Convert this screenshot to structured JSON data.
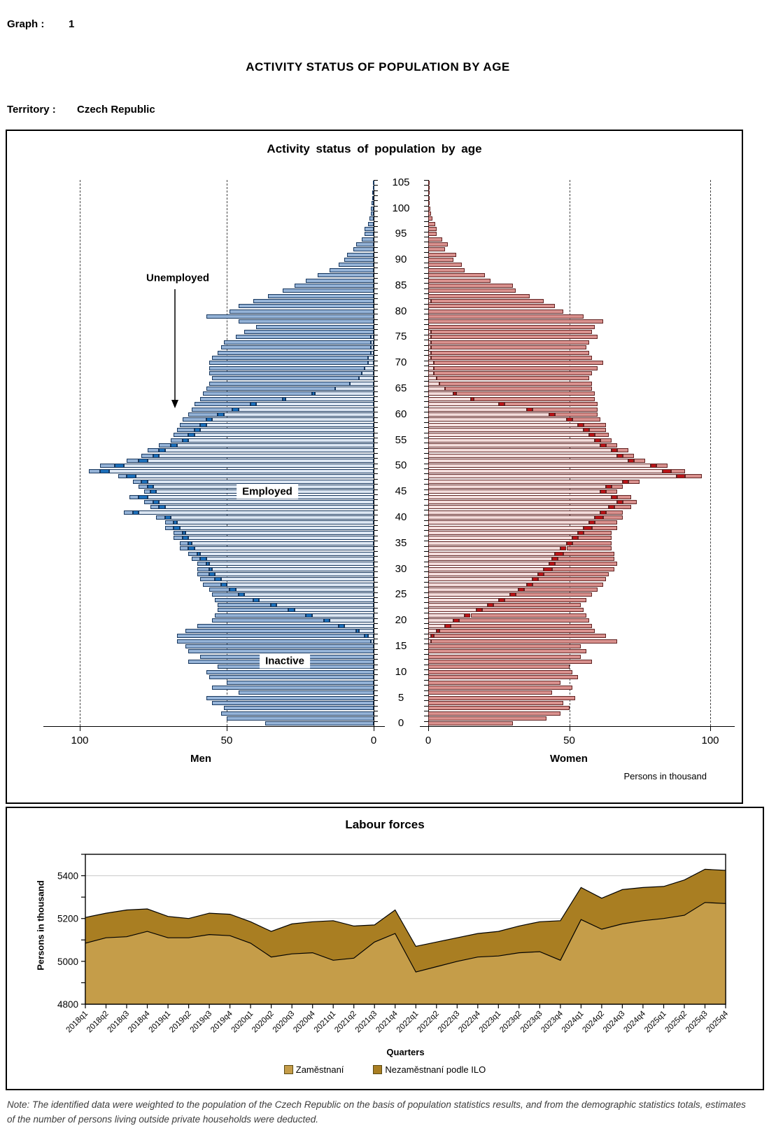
{
  "header": {
    "graph_label": "Graph :",
    "graph_number": "1",
    "title": "ACTIVITY STATUS OF POPULATION BY AGE",
    "territory_label": "Territory :",
    "territory_value": "Czech Republic"
  },
  "note": "Note: The identified data were weighted to the population of the Czech Republic on the basis of population statistics results, and from the demographic statistics totals, estimates of the number of persons living outside private households were deducted.",
  "chart_data": [
    {
      "type": "bar",
      "subtype": "population-pyramid-stacked-horizontal",
      "title": "Activity status of population by age",
      "men_label": "Men",
      "women_label": "Women",
      "units_label": "Persons in thousand",
      "annotations": {
        "unemployed": "Unemployed",
        "employed": "Employed",
        "inactive": "Inactive"
      },
      "age_min": 0,
      "age_max": 105,
      "age_tick_step": 5,
      "age_ticks": [
        0,
        5,
        10,
        15,
        20,
        25,
        30,
        35,
        40,
        45,
        50,
        55,
        60,
        65,
        70,
        75,
        80,
        85,
        90,
        95,
        100,
        105
      ],
      "x_ticks": [
        0,
        50,
        100
      ],
      "x_max": 110,
      "grid_ticks": [
        50,
        100
      ],
      "colors": {
        "men_employed": "#dce6f2",
        "men_unemployed": "#1c6fba",
        "men_inactive": "#95b3d7",
        "men_border": "#17375e",
        "women_employed": "#f2dcdb",
        "women_unemployed": "#ba1418",
        "women_inactive": "#d9918e",
        "women_border": "#622423"
      },
      "men": {
        "employed": [
          0,
          0,
          0,
          0,
          0,
          0,
          0,
          0,
          0,
          0,
          0,
          0,
          0,
          0,
          0,
          0,
          1,
          2,
          5,
          10,
          15,
          21,
          27,
          33,
          39,
          44,
          47,
          50,
          52,
          54,
          55,
          56,
          57,
          59,
          61,
          62,
          63,
          64,
          66,
          67,
          69,
          80,
          71,
          73,
          77,
          74,
          75,
          77,
          81,
          90,
          85,
          77,
          73,
          71,
          67,
          63,
          61,
          59,
          57,
          55,
          51,
          46,
          40,
          30,
          20,
          13,
          8,
          5,
          4,
          3,
          2,
          2,
          1,
          1,
          1,
          1,
          0,
          0,
          0,
          0,
          0,
          0,
          0,
          0,
          0,
          0,
          0,
          0,
          0,
          0,
          0,
          0,
          0,
          0,
          0,
          0,
          0,
          0,
          0,
          0,
          0,
          0,
          0,
          0,
          0,
          0
        ],
        "unemployed": [
          0,
          0,
          0,
          0,
          0,
          0,
          0,
          0,
          0,
          0,
          0,
          0,
          0,
          0,
          0,
          0,
          0,
          1,
          1,
          2,
          2,
          2,
          2,
          2,
          2,
          2,
          2,
          2,
          2,
          2,
          1,
          1,
          2,
          1,
          2,
          1,
          2,
          1,
          2,
          1,
          2,
          2,
          2,
          2,
          3,
          2,
          2,
          2,
          3,
          3,
          3,
          3,
          2,
          2,
          2,
          2,
          2,
          2,
          2,
          2,
          2,
          2,
          2,
          1,
          1,
          0,
          0,
          0,
          0,
          0,
          0,
          0,
          0,
          0,
          0,
          0,
          0,
          0,
          0,
          0,
          0,
          0,
          0,
          0,
          0,
          0,
          0,
          0,
          0,
          0,
          0,
          0,
          0,
          0,
          0,
          0,
          0,
          0,
          0,
          0,
          0,
          0,
          0,
          0,
          0,
          0
        ],
        "inactive": [
          37,
          50,
          52,
          51,
          55,
          57,
          46,
          55,
          50,
          56,
          57,
          53,
          63,
          59,
          63,
          64,
          66,
          64,
          58,
          48,
          38,
          31,
          24,
          18,
          13,
          9,
          7,
          6,
          5,
          4,
          4,
          3,
          3,
          3,
          3,
          3,
          3,
          3,
          3,
          3,
          3,
          3,
          3,
          3,
          3,
          2,
          3,
          3,
          3,
          4,
          5,
          4,
          4,
          4,
          4,
          4,
          5,
          6,
          7,
          8,
          10,
          14,
          19,
          28,
          37,
          44,
          48,
          50,
          52,
          53,
          54,
          53,
          52,
          51,
          50,
          46,
          44,
          40,
          46,
          57,
          49,
          46,
          41,
          36,
          31,
          27,
          23,
          19,
          15,
          12,
          10,
          9,
          7,
          6,
          4,
          3,
          3,
          2,
          1.5,
          1,
          1,
          0.7,
          0.5,
          0.4,
          0.3,
          0.2
        ]
      },
      "women": {
        "employed": [
          0,
          0,
          0,
          0,
          0,
          0,
          0,
          0,
          0,
          0,
          0,
          0,
          0,
          0,
          0,
          0,
          1,
          1,
          3,
          6,
          9,
          13,
          17,
          21,
          25,
          29,
          32,
          35,
          37,
          39,
          41,
          43,
          44,
          45,
          47,
          49,
          51,
          53,
          55,
          57,
          59,
          61,
          64,
          67,
          65,
          61,
          63,
          69,
          88,
          83,
          79,
          71,
          67,
          65,
          61,
          59,
          57,
          55,
          53,
          49,
          43,
          35,
          25,
          15,
          9,
          6,
          4,
          3,
          2,
          2,
          2,
          1,
          1,
          1,
          1,
          1,
          1,
          0,
          0,
          0,
          0,
          0,
          1,
          0,
          0,
          0,
          0,
          0,
          0,
          0,
          0,
          0,
          0,
          0,
          0,
          0,
          0,
          0,
          0,
          0,
          0,
          0,
          0,
          0,
          0,
          0
        ],
        "unemployed": [
          0,
          0,
          0,
          0,
          0,
          0,
          0,
          0,
          0,
          0,
          0,
          0,
          0,
          0,
          0,
          0,
          0,
          1,
          1,
          2,
          2,
          2,
          2,
          2,
          2,
          2,
          2,
          2,
          2,
          2,
          3,
          2,
          2,
          3,
          2,
          2,
          2,
          2,
          3,
          2,
          3,
          2,
          2,
          2,
          2,
          2,
          2,
          2,
          3,
          3,
          2,
          2,
          2,
          2,
          2,
          2,
          2,
          2,
          2,
          2,
          2,
          2,
          2,
          1,
          1,
          0,
          0,
          0,
          0,
          0,
          0,
          0,
          0,
          0,
          0,
          0,
          0,
          0,
          0,
          0,
          0,
          0,
          0,
          0,
          0,
          0,
          0,
          0,
          0,
          0,
          0,
          0,
          0,
          0,
          0,
          0,
          0,
          0,
          0,
          0,
          0,
          0,
          0,
          0,
          0,
          0
        ],
        "inactive": [
          30,
          42,
          47,
          50,
          48,
          52,
          44,
          51,
          47,
          53,
          51,
          50,
          58,
          54,
          56,
          54,
          66,
          61,
          55,
          50,
          46,
          41,
          36,
          31,
          29,
          27,
          26,
          25,
          24,
          23,
          22,
          22,
          20,
          18,
          16,
          14,
          12,
          10,
          9,
          8,
          7,
          6,
          6,
          5,
          5,
          4,
          4,
          4,
          6,
          5,
          4,
          4,
          4,
          4,
          4,
          4,
          5,
          6,
          8,
          10,
          15,
          23,
          33,
          43,
          49,
          52,
          54,
          54,
          56,
          58,
          60,
          57,
          56,
          55,
          56,
          59,
          57,
          59,
          62,
          55,
          48,
          45,
          40,
          36,
          31,
          30,
          22,
          20,
          13,
          12,
          9,
          10,
          6,
          7,
          5,
          3,
          3,
          2.5,
          1.5,
          1,
          0.8,
          0.5,
          0.4,
          0.3,
          0.2,
          0.1
        ]
      }
    },
    {
      "type": "area",
      "subtype": "stacked",
      "title": "Labour forces",
      "ylabel": "Persons in thousand",
      "xlabel": "Quarters",
      "ylim": [
        4800,
        5500
      ],
      "y_major_ticks": [
        4800,
        5000,
        5200,
        5400
      ],
      "y_minor_step": 100,
      "grid": "horizontal",
      "legend_position": "bottom",
      "colors": {
        "employed": "#c59d49",
        "unemployed": "#a97e22",
        "stroke": "#000000",
        "grid": "#c9c9c9"
      },
      "categories": [
        "2018q1",
        "2018q2",
        "2018q3",
        "2018q4",
        "2019q1",
        "2019q2",
        "2019q3",
        "2019q4",
        "2020q1",
        "2020q2",
        "2020q3",
        "2020q4",
        "2021q1",
        "2021q2",
        "2021q3",
        "2021q4",
        "2022q1",
        "2022q2",
        "2022q3",
        "2022q4",
        "2023q1",
        "2023q2",
        "2023q3",
        "2023q4",
        "2024q1",
        "2024q2",
        "2024q3",
        "2024q4",
        "2025q1",
        "2025q2",
        "2025q3",
        "2025q4"
      ],
      "series": [
        {
          "name": "Zaměstnaní",
          "values": [
            5085,
            5110,
            5115,
            5140,
            5110,
            5110,
            5125,
            5120,
            5085,
            5020,
            5035,
            5040,
            5005,
            5015,
            5090,
            5130,
            4950,
            4975,
            5000,
            5020,
            5025,
            5040,
            5045,
            5005,
            5195,
            5150,
            5175,
            5190,
            5200,
            5215,
            5275,
            5270
          ]
        },
        {
          "name": "Nezaměstnaní podle ILO",
          "values": [
            120,
            115,
            125,
            105,
            100,
            90,
            100,
            100,
            100,
            120,
            140,
            145,
            185,
            150,
            80,
            110,
            120,
            115,
            110,
            110,
            115,
            125,
            140,
            185,
            150,
            145,
            160,
            155,
            150,
            165,
            155,
            155
          ]
        }
      ]
    }
  ]
}
